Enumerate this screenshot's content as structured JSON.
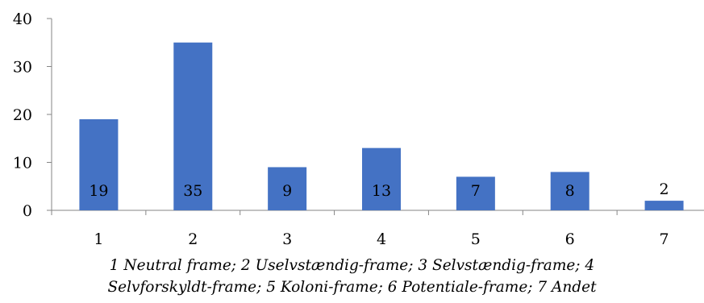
{
  "chart_data": {
    "type": "bar",
    "categories": [
      "1",
      "2",
      "3",
      "4",
      "5",
      "6",
      "7"
    ],
    "values": [
      19,
      35,
      9,
      13,
      7,
      8,
      2
    ],
    "data_labels": [
      "19",
      "35",
      "9",
      "13",
      "7",
      "8",
      "2"
    ],
    "ylim": [
      0,
      40
    ],
    "yticks": [
      0,
      10,
      20,
      30,
      40
    ],
    "grid": false,
    "legend": "none",
    "bar_color": "#4472c4",
    "caption_lines": [
      "1 Neutral frame; 2 Uselvstændig-frame; 3 Selvstændig-frame; 4",
      "Selvforskyldt-frame; 5 Koloni-frame; 6 Potentiale-frame; 7 Andet"
    ]
  }
}
